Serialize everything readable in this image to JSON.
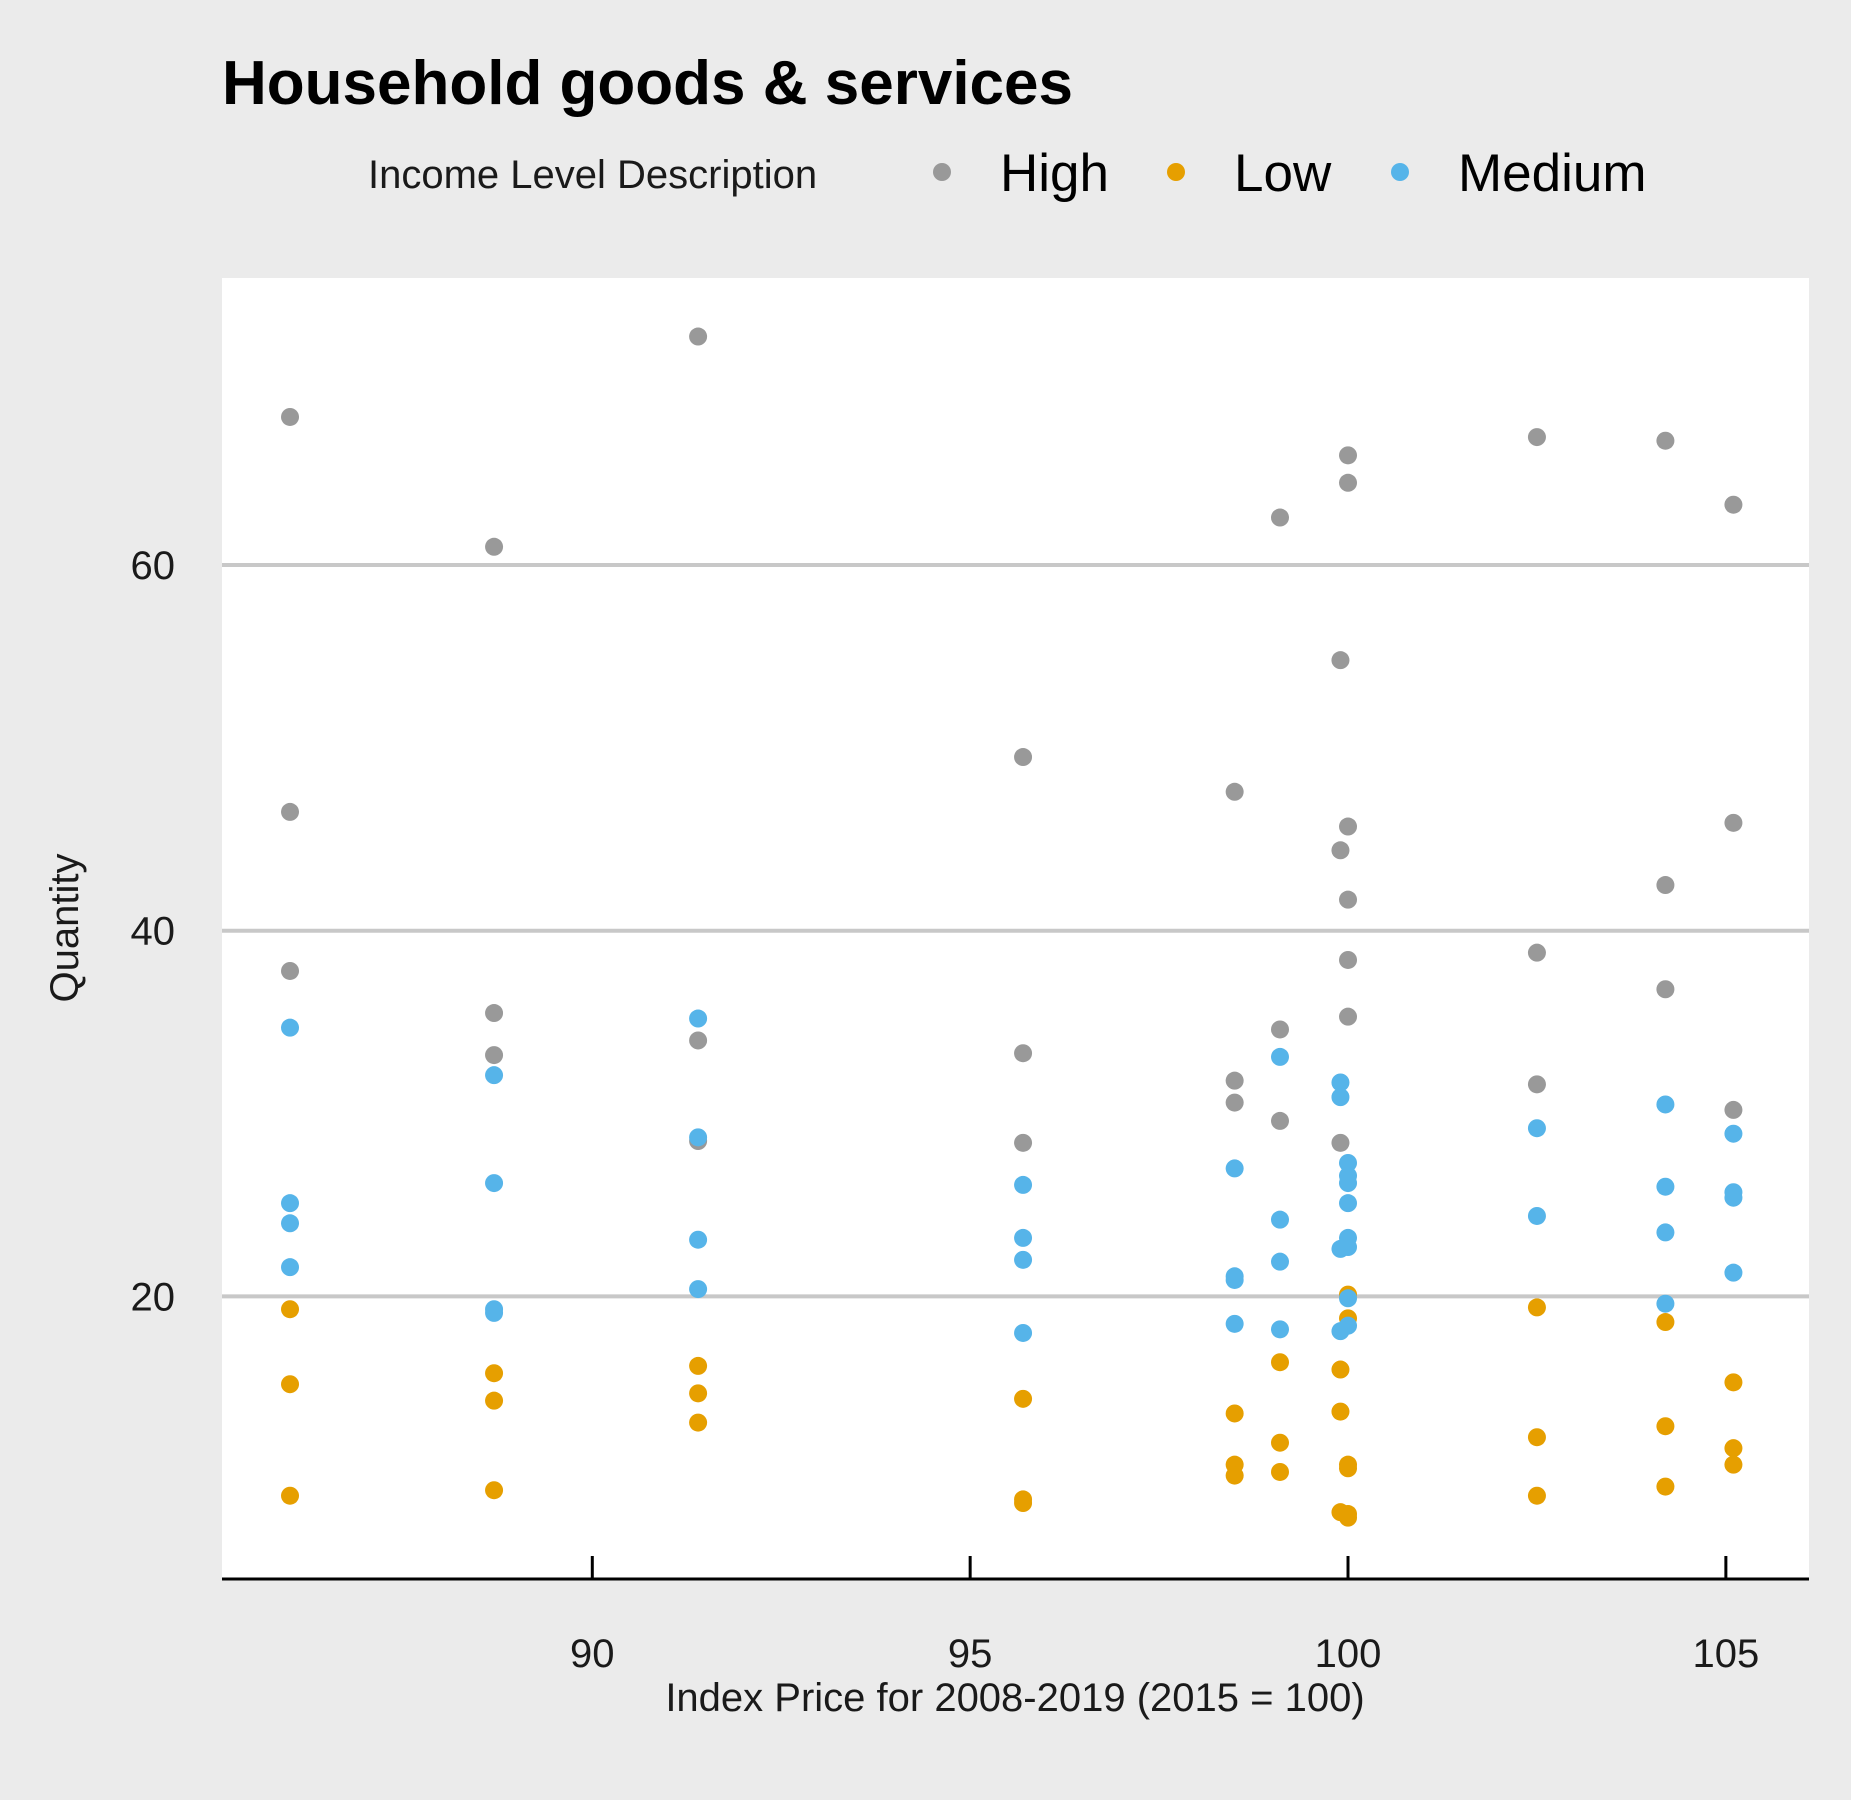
{
  "chart_data": {
    "type": "scatter",
    "title": "Household goods & services",
    "xlabel": "Index Price for 2008-2019 (2015 = 100)",
    "ylabel": "Quantity",
    "xlim": [
      85.1,
      106.1
    ],
    "ylim": [
      4.6,
      75.7
    ],
    "x_ticks": [
      90,
      95,
      100,
      105
    ],
    "y_ticks": [
      20,
      40,
      60
    ],
    "grid": "horizontal",
    "legend": {
      "title": "Income Level Description",
      "position": "top"
    },
    "series": [
      {
        "name": "High",
        "color": "#999999",
        "points": [
          [
            86.0,
            68.1
          ],
          [
            86.0,
            46.5
          ],
          [
            86.0,
            37.8
          ],
          [
            88.7,
            61.0
          ],
          [
            88.7,
            35.5
          ],
          [
            88.7,
            33.2
          ],
          [
            91.4,
            72.5
          ],
          [
            91.4,
            34.0
          ],
          [
            91.4,
            28.5
          ],
          [
            95.7,
            49.5
          ],
          [
            95.7,
            33.3
          ],
          [
            95.7,
            28.4
          ],
          [
            98.5,
            47.6
          ],
          [
            98.5,
            31.8
          ],
          [
            98.5,
            30.6
          ],
          [
            99.1,
            62.6
          ],
          [
            99.1,
            34.6
          ],
          [
            99.1,
            29.6
          ],
          [
            99.9,
            54.8
          ],
          [
            99.9,
            44.4
          ],
          [
            99.9,
            28.4
          ],
          [
            100.0,
            66.0
          ],
          [
            100.0,
            64.5
          ],
          [
            100.0,
            45.7
          ],
          [
            100.0,
            41.7
          ],
          [
            100.0,
            38.4
          ],
          [
            100.0,
            35.3
          ],
          [
            102.5,
            67.0
          ],
          [
            102.5,
            38.8
          ],
          [
            102.5,
            31.6
          ],
          [
            104.2,
            66.8
          ],
          [
            104.2,
            42.5
          ],
          [
            104.2,
            36.8
          ],
          [
            105.1,
            63.3
          ],
          [
            105.1,
            45.9
          ],
          [
            105.1,
            30.2
          ]
        ]
      },
      {
        "name": "Low",
        "color": "#e69f00",
        "points": [
          [
            86.0,
            19.3
          ],
          [
            86.0,
            15.2
          ],
          [
            86.0,
            9.1
          ],
          [
            88.7,
            15.8
          ],
          [
            88.7,
            14.3
          ],
          [
            88.7,
            9.4
          ],
          [
            91.4,
            16.2
          ],
          [
            91.4,
            14.7
          ],
          [
            91.4,
            13.1
          ],
          [
            95.7,
            14.4
          ],
          [
            95.7,
            8.9
          ],
          [
            95.7,
            8.7
          ],
          [
            98.5,
            13.6
          ],
          [
            98.5,
            10.8
          ],
          [
            98.5,
            10.2
          ],
          [
            99.1,
            16.4
          ],
          [
            99.1,
            12.0
          ],
          [
            99.1,
            10.4
          ],
          [
            99.9,
            16.0
          ],
          [
            99.9,
            13.7
          ],
          [
            99.9,
            8.2
          ],
          [
            100.0,
            20.1
          ],
          [
            100.0,
            18.8
          ],
          [
            100.0,
            10.8
          ],
          [
            100.0,
            10.6
          ],
          [
            100.0,
            8.1
          ],
          [
            100.0,
            7.9
          ],
          [
            102.5,
            19.4
          ],
          [
            102.5,
            12.3
          ],
          [
            102.5,
            9.1
          ],
          [
            104.2,
            18.6
          ],
          [
            104.2,
            12.9
          ],
          [
            104.2,
            9.6
          ],
          [
            105.1,
            15.3
          ],
          [
            105.1,
            11.7
          ],
          [
            105.1,
            10.8
          ]
        ]
      },
      {
        "name": "Medium",
        "color": "#56b4e9",
        "points": [
          [
            86.0,
            34.7
          ],
          [
            86.0,
            25.1
          ],
          [
            86.0,
            24.0
          ],
          [
            86.0,
            21.6
          ],
          [
            88.7,
            32.1
          ],
          [
            88.7,
            26.2
          ],
          [
            88.7,
            19.3
          ],
          [
            88.7,
            19.1
          ],
          [
            91.4,
            35.2
          ],
          [
            91.4,
            28.7
          ],
          [
            91.4,
            23.1
          ],
          [
            91.4,
            20.4
          ],
          [
            95.7,
            26.1
          ],
          [
            95.7,
            23.2
          ],
          [
            95.7,
            22.0
          ],
          [
            95.7,
            18.0
          ],
          [
            98.5,
            27.0
          ],
          [
            98.5,
            21.1
          ],
          [
            98.5,
            20.9
          ],
          [
            98.5,
            18.5
          ],
          [
            99.1,
            33.1
          ],
          [
            99.1,
            24.2
          ],
          [
            99.1,
            21.9
          ],
          [
            99.1,
            18.2
          ],
          [
            99.9,
            31.7
          ],
          [
            99.9,
            30.9
          ],
          [
            99.9,
            22.6
          ],
          [
            99.9,
            18.1
          ],
          [
            100.0,
            27.3
          ],
          [
            100.0,
            26.6
          ],
          [
            100.0,
            26.2
          ],
          [
            100.0,
            25.1
          ],
          [
            100.0,
            23.2
          ],
          [
            100.0,
            22.7
          ],
          [
            100.0,
            19.9
          ],
          [
            100.0,
            18.4
          ],
          [
            102.5,
            29.2
          ],
          [
            102.5,
            24.4
          ],
          [
            104.2,
            30.5
          ],
          [
            104.2,
            26.0
          ],
          [
            104.2,
            23.5
          ],
          [
            104.2,
            19.6
          ],
          [
            105.1,
            28.9
          ],
          [
            105.1,
            25.7
          ],
          [
            105.1,
            25.4
          ],
          [
            105.1,
            21.3
          ]
        ]
      }
    ]
  }
}
